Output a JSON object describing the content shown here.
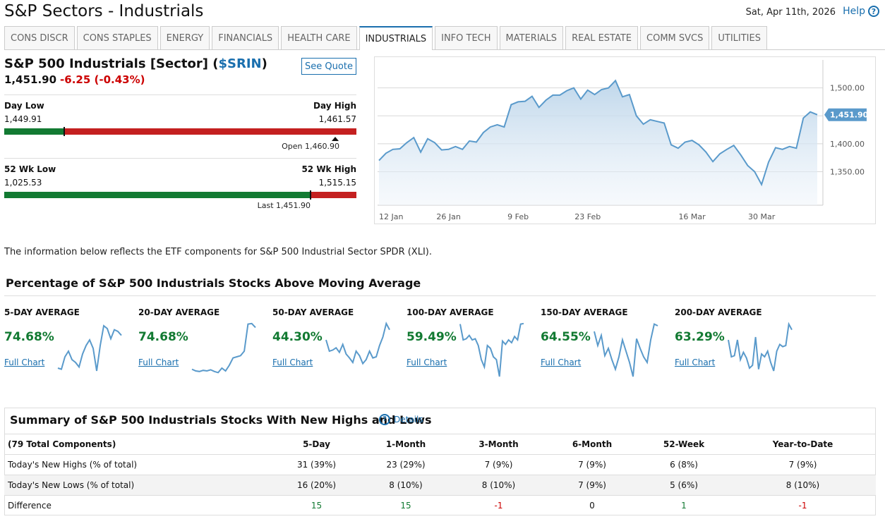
{
  "page_title": "S&P Sectors - Industrials",
  "date": "Sat, Apr 11th, 2026",
  "help_label": "Help",
  "tabs": [
    "CONS DISCR",
    "CONS STAPLES",
    "ENERGY",
    "FINANCIALS",
    "HEALTH CARE",
    "INDUSTRIALS",
    "INFO TECH",
    "MATERIALS",
    "REAL ESTATE",
    "COMM SVCS",
    "UTILITIES"
  ],
  "active_tab": "INDUSTRIALS",
  "quote": {
    "name": "S&P 500 Industrials [Sector] (",
    "symbol": "$SRIN",
    "close_paren": ")",
    "see_quote_label": "See Quote",
    "last": "1,451.90",
    "change": "-6.25 (-0.43%)",
    "day_low_label": "Day Low",
    "day_low": "1,449.91",
    "day_high_label": "Day High",
    "day_high": "1,461.57",
    "open_text": "Open 1,460.90",
    "day_range_position": 0.17,
    "open_position": 0.94,
    "wk52_low_label": "52 Wk Low",
    "wk52_low": "1,025.53",
    "wk52_high_label": "52 Wk High",
    "wk52_high": "1,515.15",
    "last_text": "Last 1,451.90",
    "wk52_position": 0.87
  },
  "chart_data": {
    "type": "area",
    "x_ticks": [
      "12 Jan",
      "26 Jan",
      "9 Feb",
      "23 Feb",
      "16 Mar",
      "30 Mar"
    ],
    "y_ticks": [
      "1,350.00",
      "1,400.00",
      "1,500.00"
    ],
    "ylim": [
      1290,
      1550
    ],
    "last_label": "1,451.90",
    "values": [
      1370,
      1383,
      1390,
      1391,
      1402,
      1411,
      1385,
      1409,
      1402,
      1389,
      1390,
      1395,
      1390,
      1405,
      1403,
      1420,
      1430,
      1434,
      1430,
      1470,
      1475,
      1476,
      1485,
      1465,
      1478,
      1487,
      1487,
      1495,
      1500,
      1480,
      1496,
      1488,
      1497,
      1500,
      1513,
      1484,
      1488,
      1450,
      1435,
      1443,
      1440,
      1437,
      1398,
      1392,
      1403,
      1406,
      1398,
      1385,
      1368,
      1382,
      1390,
      1397,
      1380,
      1361,
      1350,
      1327,
      1367,
      1393,
      1390,
      1395,
      1392,
      1446,
      1457,
      1451.9
    ],
    "grid": true,
    "y_axis_position": "right"
  },
  "info_text": "The information below reflects the ETF components for S&P 500 Industrial Sector SPDR (XLI).",
  "ma_section_title": "Percentage of S&P 500 Industrials Stocks Above Moving Average",
  "moving_averages": [
    {
      "name": "5-DAY AVERAGE",
      "pct": "74.68%",
      "link": "Full Chart",
      "spark": [
        20,
        18,
        40,
        50,
        35,
        30,
        22,
        45,
        60,
        70,
        55,
        15,
        60,
        95,
        90,
        72,
        88,
        85,
        78
      ]
    },
    {
      "name": "20-DAY AVERAGE",
      "pct": "74.68%",
      "link": "Full Chart",
      "spark": [
        18,
        15,
        14,
        16,
        15,
        17,
        14,
        12,
        20,
        15,
        25,
        38,
        40,
        42,
        50,
        98,
        99,
        92
      ]
    },
    {
      "name": "50-DAY AVERAGE",
      "pct": "44.30%",
      "link": "Full Chart",
      "spark": [
        70,
        50,
        52,
        56,
        48,
        62,
        45,
        38,
        30,
        50,
        42,
        28,
        35,
        50,
        38,
        40,
        60,
        75,
        99,
        88
      ]
    },
    {
      "name": "100-DAY AVERAGE",
      "pct": "59.49%",
      "link": "Full Chart",
      "spark": [
        98,
        70,
        72,
        78,
        70,
        72,
        60,
        35,
        22,
        60,
        55,
        40,
        35,
        5,
        68,
        62,
        70,
        65,
        76,
        70,
        98,
        99
      ]
    },
    {
      "name": "150-DAY AVERAGE",
      "pct": "64.55%",
      "link": "Full Chart",
      "spark": [
        85,
        60,
        78,
        42,
        55,
        35,
        18,
        40,
        70,
        50,
        30,
        5,
        72,
        55,
        40,
        30,
        70,
        98,
        95
      ]
    },
    {
      "name": "200-DAY AVERAGE",
      "pct": "63.29%",
      "link": "Full Chart",
      "spark": [
        70,
        40,
        42,
        70,
        35,
        48,
        38,
        20,
        25,
        75,
        18,
        45,
        40,
        50,
        30,
        15,
        50,
        62,
        58,
        60,
        98,
        88
      ]
    }
  ],
  "hl_title": "Summary of S&P 500 Industrials Stocks With New Highs and Lows",
  "details_label": "Details",
  "hl_table": {
    "headers": [
      "(79 Total Components)",
      "5-Day",
      "1-Month",
      "3-Month",
      "6-Month",
      "52-Week",
      "Year-to-Date"
    ],
    "rows": [
      [
        "Today's New Highs (% of total)",
        "31 (39%)",
        "23 (29%)",
        "7 (9%)",
        "7 (9%)",
        "6 (8%)",
        "7 (9%)"
      ],
      [
        "Today's New Lows (% of total)",
        "16 (20%)",
        "8 (10%)",
        "8 (10%)",
        "7 (9%)",
        "5 (6%)",
        "8 (10%)"
      ],
      [
        "Difference",
        "15",
        "15",
        "-1",
        "0",
        "1",
        "-1"
      ]
    ]
  },
  "colors": {
    "accent": "#1a6fae",
    "positive": "#127a32",
    "negative": "#c42020",
    "line": "#5a9acb"
  }
}
